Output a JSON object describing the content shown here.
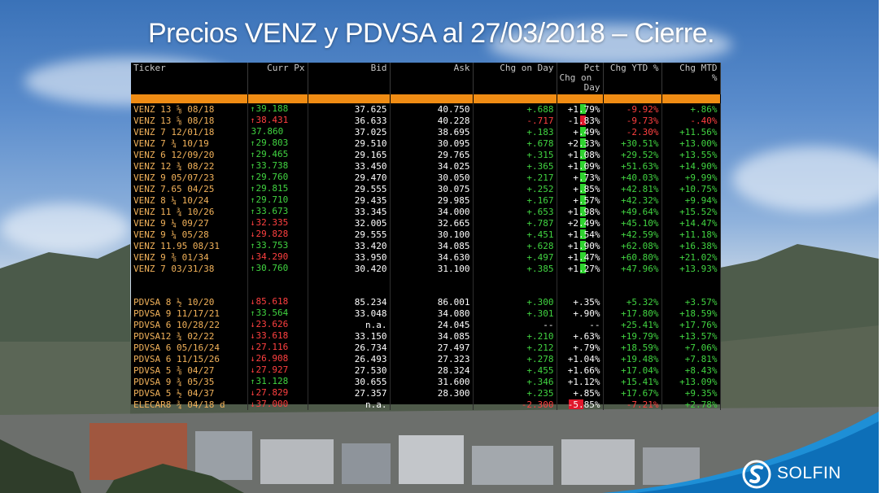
{
  "title": "Precios VENZ y PDVSA al 27/03/2018 – Cierre.",
  "brand": {
    "name": "SOLFIN",
    "icon": "solfin-logo-icon"
  },
  "colors": {
    "ticker": "#f2b25a",
    "up": "#41d441",
    "down": "#ff4040",
    "header_bar": "#f08c14"
  },
  "table": {
    "headers": {
      "ticker": "Ticker",
      "curr_px": "Curr Px",
      "bid": "Bid",
      "ask": "Ask",
      "chg_day": "Chg on Day",
      "pct_chg_day_1": "Pct",
      "pct_chg_day_2": "Chg on",
      "pct_chg_day_3": "Day",
      "chg_ytd": "Chg YTD %",
      "chg_mtd_1": "Chg MTD",
      "chg_mtd_2": "%"
    },
    "venz": [
      {
        "ticker": "VENZ 13 ⅝ 08/18",
        "arrow": "↑",
        "px": "39.188",
        "dir": "up",
        "bid": "37.625",
        "ask": "40.750",
        "chg": "+.688",
        "chg_dir": "g",
        "pct": "+1.79%",
        "pct_dir": "g",
        "ytd": "-9.92%",
        "ytd_dir": "r",
        "mtd": "+.86%",
        "mtd_dir": "g"
      },
      {
        "ticker": "VENZ 13 ⅝ 08/18",
        "arrow": "↑",
        "px": "38.431",
        "dir": "dn",
        "bid": "36.633",
        "ask": "40.228",
        "chg": "-.717",
        "chg_dir": "r",
        "pct": "-1.83%",
        "pct_dir": "r",
        "ytd": "-9.73%",
        "ytd_dir": "r",
        "mtd": "-.40%",
        "mtd_dir": "r"
      },
      {
        "ticker": "VENZ 7 12/01/18",
        "arrow": "",
        "px": "37.860",
        "dir": "up",
        "bid": "37.025",
        "ask": "38.695",
        "chg": "+.183",
        "chg_dir": "g",
        "pct": "+.49%",
        "pct_dir": "g",
        "ytd": "-2.30%",
        "ytd_dir": "r",
        "mtd": "+11.56%",
        "mtd_dir": "g"
      },
      {
        "ticker": "VENZ 7 ¾ 10/19",
        "arrow": "↑",
        "px": "29.803",
        "dir": "up",
        "bid": "29.510",
        "ask": "30.095",
        "chg": "+.678",
        "chg_dir": "g",
        "pct": "+2.33%",
        "pct_dir": "g",
        "ytd": "+30.51%",
        "ytd_dir": "g",
        "mtd": "+13.00%",
        "mtd_dir": "g"
      },
      {
        "ticker": "VENZ 6 12/09/20",
        "arrow": "↑",
        "px": "29.465",
        "dir": "up",
        "bid": "29.165",
        "ask": "29.765",
        "chg": "+.315",
        "chg_dir": "g",
        "pct": "+1.08%",
        "pct_dir": "g",
        "ytd": "+29.52%",
        "ytd_dir": "g",
        "mtd": "+13.55%",
        "mtd_dir": "g"
      },
      {
        "ticker": "VENZ 12 ¾ 08/22",
        "arrow": "↑",
        "px": "33.738",
        "dir": "up",
        "bid": "33.450",
        "ask": "34.025",
        "chg": "+.365",
        "chg_dir": "g",
        "pct": "+1.09%",
        "pct_dir": "g",
        "ytd": "+51.63%",
        "ytd_dir": "g",
        "mtd": "+14.90%",
        "mtd_dir": "g"
      },
      {
        "ticker": "VENZ 9 05/07/23",
        "arrow": "↑",
        "px": "29.760",
        "dir": "up",
        "bid": "29.470",
        "ask": "30.050",
        "chg": "+.217",
        "chg_dir": "g",
        "pct": "+.73%",
        "pct_dir": "g",
        "ytd": "+40.03%",
        "ytd_dir": "g",
        "mtd": "+9.99%",
        "mtd_dir": "g"
      },
      {
        "ticker": "VENZ 7.65 04/25",
        "arrow": "↑",
        "px": "29.815",
        "dir": "up",
        "bid": "29.555",
        "ask": "30.075",
        "chg": "+.252",
        "chg_dir": "g",
        "pct": "+.85%",
        "pct_dir": "g",
        "ytd": "+42.81%",
        "ytd_dir": "g",
        "mtd": "+10.75%",
        "mtd_dir": "g"
      },
      {
        "ticker": "VENZ 8 ¼ 10/24",
        "arrow": "↑",
        "px": "29.710",
        "dir": "up",
        "bid": "29.435",
        "ask": "29.985",
        "chg": "+.167",
        "chg_dir": "g",
        "pct": "+.57%",
        "pct_dir": "g",
        "ytd": "+42.32%",
        "ytd_dir": "g",
        "mtd": "+9.94%",
        "mtd_dir": "g"
      },
      {
        "ticker": "VENZ 11 ¾ 10/26",
        "arrow": "↑",
        "px": "33.673",
        "dir": "up",
        "bid": "33.345",
        "ask": "34.000",
        "chg": "+.653",
        "chg_dir": "g",
        "pct": "+1.98%",
        "pct_dir": "g",
        "ytd": "+49.64%",
        "ytd_dir": "g",
        "mtd": "+15.52%",
        "mtd_dir": "g"
      },
      {
        "ticker": "VENZ 9 ¼ 09/27",
        "arrow": "↓",
        "px": "32.335",
        "dir": "dn",
        "bid": "32.005",
        "ask": "32.665",
        "chg": "+.787",
        "chg_dir": "g",
        "pct": "+2.49%",
        "pct_dir": "g",
        "ytd": "+45.10%",
        "ytd_dir": "g",
        "mtd": "+14.47%",
        "mtd_dir": "g"
      },
      {
        "ticker": "VENZ 9 ¼ 05/28",
        "arrow": "↓",
        "px": "29.828",
        "dir": "dn",
        "bid": "29.555",
        "ask": "30.100",
        "chg": "+.451",
        "chg_dir": "g",
        "pct": "+1.54%",
        "pct_dir": "g",
        "ytd": "+42.59%",
        "ytd_dir": "g",
        "mtd": "+11.18%",
        "mtd_dir": "g"
      },
      {
        "ticker": "VENZ 11.95 08/31",
        "arrow": "↑",
        "px": "33.753",
        "dir": "up",
        "bid": "33.420",
        "ask": "34.085",
        "chg": "+.628",
        "chg_dir": "g",
        "pct": "+1.90%",
        "pct_dir": "g",
        "ytd": "+62.08%",
        "ytd_dir": "g",
        "mtd": "+16.38%",
        "mtd_dir": "g"
      },
      {
        "ticker": "VENZ 9 ⅜ 01/34",
        "arrow": "↓",
        "px": "34.290",
        "dir": "dn",
        "bid": "33.950",
        "ask": "34.630",
        "chg": "+.497",
        "chg_dir": "g",
        "pct": "+1.47%",
        "pct_dir": "g",
        "ytd": "+60.80%",
        "ytd_dir": "g",
        "mtd": "+21.02%",
        "mtd_dir": "g"
      },
      {
        "ticker": "VENZ 7 03/31/38",
        "arrow": "↑",
        "px": "30.760",
        "dir": "up",
        "bid": "30.420",
        "ask": "31.100",
        "chg": "+.385",
        "chg_dir": "g",
        "pct": "+1.27%",
        "pct_dir": "g",
        "ytd": "+47.96%",
        "ytd_dir": "g",
        "mtd": "+13.93%",
        "mtd_dir": "g"
      }
    ],
    "pdvsa": [
      {
        "ticker": "PDVSA 8 ½ 10/20",
        "arrow": "↓",
        "px": "85.618",
        "dir": "dn",
        "bid": "85.234",
        "ask": "86.001",
        "chg": "+.300",
        "chg_dir": "g",
        "pct": "+.35%",
        "pct_dir": "w",
        "ytd": "+5.32%",
        "ytd_dir": "g",
        "mtd": "+3.57%",
        "mtd_dir": "g"
      },
      {
        "ticker": "PDVSA 9 11/17/21",
        "arrow": "↑",
        "px": "33.564",
        "dir": "up",
        "bid": "33.048",
        "ask": "34.080",
        "chg": "+.301",
        "chg_dir": "g",
        "pct": "+.90%",
        "pct_dir": "w",
        "ytd": "+17.80%",
        "ytd_dir": "g",
        "mtd": "+18.59%",
        "mtd_dir": "g"
      },
      {
        "ticker": "PDVSA 6 10/28/22",
        "arrow": "↓",
        "px": "23.626",
        "dir": "dn",
        "bid": "n.a.",
        "ask": "24.045",
        "chg": "--",
        "chg_dir": "w",
        "pct": "--",
        "pct_dir": "n",
        "ytd": "+25.41%",
        "ytd_dir": "g",
        "mtd": "+17.76%",
        "mtd_dir": "g"
      },
      {
        "ticker": "PDVSA12 ¾ 02/22",
        "arrow": "↓",
        "px": "33.618",
        "dir": "dn",
        "bid": "33.150",
        "ask": "34.085",
        "chg": "+.210",
        "chg_dir": "g",
        "pct": "+.63%",
        "pct_dir": "w",
        "ytd": "+19.79%",
        "ytd_dir": "g",
        "mtd": "+13.57%",
        "mtd_dir": "g"
      },
      {
        "ticker": "PDVSA 6 05/16/24",
        "arrow": "↓",
        "px": "27.116",
        "dir": "dn",
        "bid": "26.734",
        "ask": "27.497",
        "chg": "+.212",
        "chg_dir": "g",
        "pct": "+.79%",
        "pct_dir": "w",
        "ytd": "+18.59%",
        "ytd_dir": "g",
        "mtd": "+7.06%",
        "mtd_dir": "g"
      },
      {
        "ticker": "PDVSA 6 11/15/26",
        "arrow": "↓",
        "px": "26.908",
        "dir": "dn",
        "bid": "26.493",
        "ask": "27.323",
        "chg": "+.278",
        "chg_dir": "g",
        "pct": "+1.04%",
        "pct_dir": "w",
        "ytd": "+19.48%",
        "ytd_dir": "g",
        "mtd": "+7.81%",
        "mtd_dir": "g"
      },
      {
        "ticker": "PDVSA 5 ⅜ 04/27",
        "arrow": "↓",
        "px": "27.927",
        "dir": "dn",
        "bid": "27.530",
        "ask": "28.324",
        "chg": "+.455",
        "chg_dir": "g",
        "pct": "+1.66%",
        "pct_dir": "w",
        "ytd": "+17.04%",
        "ytd_dir": "g",
        "mtd": "+8.43%",
        "mtd_dir": "g"
      },
      {
        "ticker": "PDVSA 9 ¾ 05/35",
        "arrow": "↑",
        "px": "31.128",
        "dir": "up",
        "bid": "30.655",
        "ask": "31.600",
        "chg": "+.346",
        "chg_dir": "g",
        "pct": "+1.12%",
        "pct_dir": "w",
        "ytd": "+15.41%",
        "ytd_dir": "g",
        "mtd": "+13.09%",
        "mtd_dir": "g"
      },
      {
        "ticker": "PDVSA 5 ½ 04/37",
        "arrow": "↓",
        "px": "27.829",
        "dir": "dn",
        "bid": "27.357",
        "ask": "28.300",
        "chg": "+.235",
        "chg_dir": "g",
        "pct": "+.85%",
        "pct_dir": "w",
        "ytd": "+17.67%",
        "ytd_dir": "g",
        "mtd": "+9.35%",
        "mtd_dir": "g"
      },
      {
        "ticker": "ELECAR8 ¾ 04/18 d",
        "arrow": "↓",
        "px": "37.000",
        "dir": "dn",
        "bid": "n.a.",
        "ask": "",
        "chg": "-2.300",
        "chg_dir": "r",
        "pct": "-5.85%",
        "pct_dir": "rbig",
        "ytd": "-7.21%",
        "ytd_dir": "r",
        "mtd": "+2.78%",
        "mtd_dir": "g"
      }
    ]
  }
}
